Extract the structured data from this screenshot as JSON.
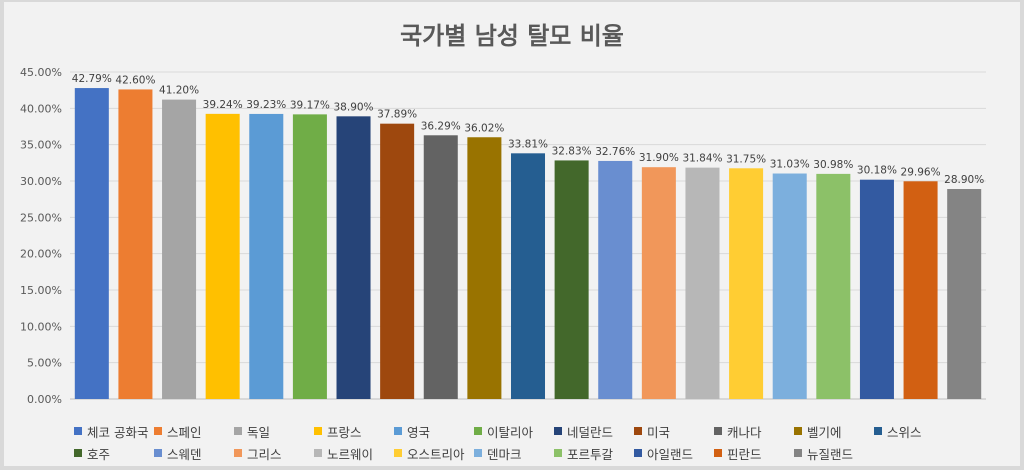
{
  "chart_data": {
    "type": "bar",
    "title": "국가별 남성 탈모 비율",
    "xlabel": "",
    "ylabel": "",
    "ylim": [
      0,
      45
    ],
    "yticks": [
      "0.00%",
      "5.00%",
      "10.00%",
      "15.00%",
      "20.00%",
      "25.00%",
      "30.00%",
      "35.00%",
      "40.00%",
      "45.00%"
    ],
    "grid": true,
    "legend_position": "bottom",
    "categories": [
      "체코 공화국",
      "스페인",
      "독일",
      "프랑스",
      "영국",
      "이탈리아",
      "네덜란드",
      "미국",
      "캐나다",
      "벨기에",
      "스위스",
      "호주",
      "스웨덴",
      "그리스",
      "노르웨이",
      "오스트리아",
      "덴마크",
      "포르투갈",
      "아일랜드",
      "핀란드",
      "뉴질랜드"
    ],
    "values": [
      42.79,
      42.6,
      41.2,
      39.24,
      39.23,
      39.17,
      38.9,
      37.89,
      36.29,
      36.02,
      33.81,
      32.83,
      32.76,
      31.9,
      31.84,
      31.75,
      31.03,
      30.98,
      30.18,
      29.96,
      28.9
    ],
    "labels": [
      "42.79%",
      "42.60%",
      "41.20%",
      "39.24%",
      "39.23%",
      "39.17%",
      "38.90%",
      "37.89%",
      "36.29%",
      "36.02%",
      "33.81%",
      "32.83%",
      "32.76%",
      "31.90%",
      "31.84%",
      "31.75%",
      "31.03%",
      "30.98%",
      "30.18%",
      "29.96%",
      "28.90%"
    ],
    "colors": [
      "#4472c4",
      "#ed7d31",
      "#a5a5a5",
      "#ffc000",
      "#5b9bd5",
      "#70ad47",
      "#264478",
      "#9e480e",
      "#636363",
      "#997300",
      "#255e91",
      "#43682b",
      "#698ed0",
      "#f1975a",
      "#b7b7b7",
      "#ffcd33",
      "#7cafdd",
      "#8cc168",
      "#335aa1",
      "#d26012",
      "#848484"
    ]
  }
}
